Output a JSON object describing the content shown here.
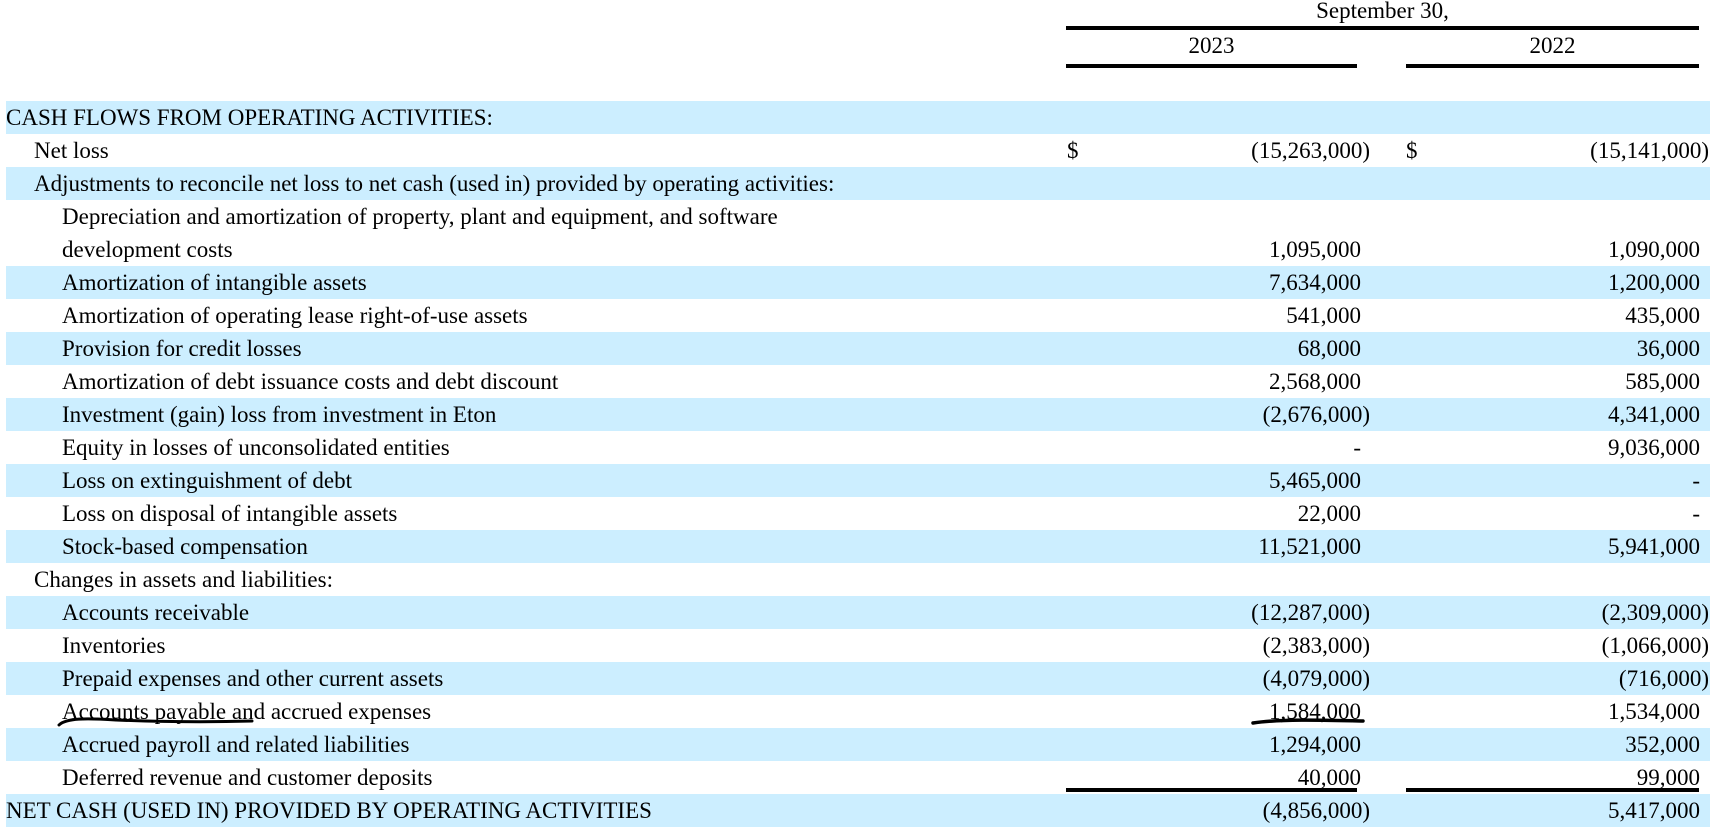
{
  "header": {
    "period_label": "September 30,",
    "year_1": "2023",
    "year_2": "2022"
  },
  "rows": [
    {
      "label": "CASH FLOWS FROM OPERATING ACTIVITIES:",
      "level": 0,
      "v2023": "",
      "v2022": "",
      "shaded": true
    },
    {
      "label": "Net loss",
      "level": 1,
      "currency": "$",
      "v2023": "(15,263,000)",
      "v2022": "(15,141,000)",
      "shaded": false
    },
    {
      "label": "Adjustments to reconcile net loss to net cash (used in) provided by operating activities:",
      "level": 1,
      "v2023": "",
      "v2022": "",
      "shaded": true
    },
    {
      "label": "Depreciation and amortization of property, plant and equipment, and software",
      "label_2": "development costs",
      "level": 2,
      "v2023": "1,095,000",
      "v2022": "1,090,000",
      "shaded": false
    },
    {
      "label": "Amortization of intangible assets",
      "level": 2,
      "v2023": "7,634,000",
      "v2022": "1,200,000",
      "shaded": true
    },
    {
      "label": "Amortization of operating lease right-of-use assets",
      "level": 2,
      "v2023": "541,000",
      "v2022": "435,000",
      "shaded": false
    },
    {
      "label": "Provision for credit losses",
      "level": 2,
      "v2023": "68,000",
      "v2022": "36,000",
      "shaded": true
    },
    {
      "label": "Amortization of debt issuance costs and debt discount",
      "level": 2,
      "v2023": "2,568,000",
      "v2022": "585,000",
      "shaded": false
    },
    {
      "label": "Investment (gain) loss from investment in Eton",
      "level": 2,
      "v2023": "(2,676,000)",
      "v2022": "4,341,000",
      "shaded": true
    },
    {
      "label": "Equity in losses of unconsolidated entities",
      "level": 2,
      "v2023": "-",
      "v2022": "9,036,000",
      "shaded": false
    },
    {
      "label": "Loss on extinguishment of debt",
      "level": 2,
      "v2023": "5,465,000",
      "v2022": "-",
      "shaded": true
    },
    {
      "label": "Loss on disposal of intangible assets",
      "level": 2,
      "v2023": "22,000",
      "v2022": "-",
      "shaded": false
    },
    {
      "label": "Stock-based compensation",
      "level": 2,
      "v2023": "11,521,000",
      "v2022": "5,941,000",
      "shaded": true
    },
    {
      "label": "Changes in assets and liabilities:",
      "level": 1,
      "v2023": "",
      "v2022": "",
      "shaded": false
    },
    {
      "label": "Accounts receivable",
      "level": 2,
      "v2023": "(12,287,000)",
      "v2022": "(2,309,000)",
      "shaded": true
    },
    {
      "label": "Inventories",
      "level": 2,
      "v2023": "(2,383,000)",
      "v2022": "(1,066,000)",
      "shaded": false
    },
    {
      "label": "Prepaid expenses and other current assets",
      "level": 2,
      "v2023": "(4,079,000)",
      "v2022": "(716,000)",
      "shaded": true
    },
    {
      "label": "Accounts payable and accrued expenses",
      "level": 2,
      "v2023": "1,584,000",
      "v2022": "1,534,000",
      "shaded": false
    },
    {
      "label": "Accrued payroll and related liabilities",
      "level": 2,
      "v2023": "1,294,000",
      "v2022": "352,000",
      "shaded": true
    },
    {
      "label": "Deferred revenue and customer deposits",
      "level": 2,
      "v2023": "40,000",
      "v2022": "99,000",
      "shaded": false
    },
    {
      "label": "NET CASH (USED IN) PROVIDED BY OPERATING ACTIVITIES",
      "level": 0,
      "v2023": "(4,856,000)",
      "v2022": "5,417,000",
      "shaded": true
    }
  ]
}
